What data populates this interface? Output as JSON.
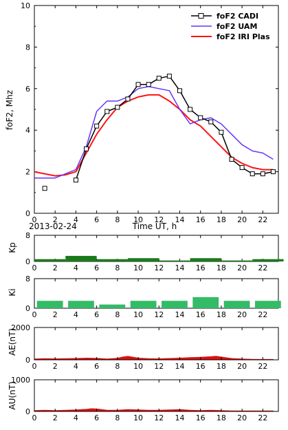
{
  "date_label": "2013-02-24",
  "chart_data": [
    {
      "id": "fof2",
      "type": "line",
      "title": "",
      "xlabel": "Time UT, h",
      "ylabel": "foF2, Mhz",
      "xlim": [
        0,
        23.5
      ],
      "ylim": [
        0,
        10
      ],
      "xticks": [
        0,
        2,
        4,
        6,
        8,
        10,
        12,
        14,
        16,
        18,
        20,
        22
      ],
      "yticks": [
        0,
        2,
        4,
        6,
        8,
        10
      ],
      "legend_position": "top-right",
      "series": [
        {
          "name": "foF2 CADI",
          "color": "#000000",
          "marker": "square",
          "x": [
            1,
            4,
            5,
            6,
            7,
            8,
            9,
            10,
            11,
            12,
            13,
            14,
            15,
            16,
            17,
            18,
            19,
            20,
            21,
            22,
            23
          ],
          "y": [
            1.2,
            1.6,
            3.1,
            4.2,
            4.9,
            5.1,
            5.5,
            6.2,
            6.2,
            6.5,
            6.6,
            5.9,
            5.0,
            4.6,
            4.4,
            3.9,
            2.6,
            2.2,
            1.9,
            1.9,
            2.0
          ],
          "gap_after_index": 0
        },
        {
          "name": "foF2 UAM",
          "color": "#6633ff",
          "x": [
            0,
            1,
            2,
            3,
            4,
            5,
            6,
            7,
            8,
            9,
            10,
            11,
            12,
            13,
            14,
            15,
            16,
            17,
            18,
            19,
            20,
            21,
            22,
            23
          ],
          "y": [
            1.7,
            1.7,
            1.7,
            1.9,
            2.1,
            3.2,
            4.9,
            5.4,
            5.4,
            5.6,
            6.0,
            6.1,
            6.0,
            5.9,
            5.0,
            4.3,
            4.5,
            4.6,
            4.3,
            3.8,
            3.3,
            3.0,
            2.9,
            2.6
          ]
        },
        {
          "name": "foF2 IRI Plas",
          "color": "#ff1111",
          "x": [
            0,
            1,
            2,
            3,
            4,
            5,
            6,
            7,
            8,
            9,
            10,
            11,
            12,
            13,
            14,
            15,
            16,
            17,
            18,
            19,
            20,
            21,
            22,
            23
          ],
          "y": [
            2.0,
            1.9,
            1.8,
            1.85,
            2.0,
            2.9,
            3.8,
            4.5,
            5.1,
            5.4,
            5.6,
            5.7,
            5.7,
            5.4,
            5.0,
            4.5,
            4.2,
            3.7,
            3.2,
            2.7,
            2.4,
            2.2,
            2.1,
            2.1
          ]
        }
      ]
    },
    {
      "id": "kp",
      "type": "bar",
      "ylabel": "Kp",
      "xlim": [
        0,
        23.5
      ],
      "ylim": [
        0,
        8
      ],
      "yticks": [
        0,
        8
      ],
      "xticks": [
        0,
        2,
        4,
        6,
        8,
        10,
        12,
        14,
        16,
        18,
        20,
        22
      ],
      "bar_width_hours": 3,
      "bar_color": "#1a7a1a",
      "x_start": [
        0,
        3,
        6,
        9,
        12,
        15,
        18,
        21
      ],
      "values": [
        0.7,
        1.7,
        0.7,
        1.0,
        0.3,
        1.0,
        0.3,
        0.7
      ]
    },
    {
      "id": "ki",
      "type": "bar",
      "ylabel": "Ki",
      "xlim": [
        0,
        23.5
      ],
      "ylim": [
        0,
        8
      ],
      "yticks": [
        0,
        8
      ],
      "xticks": [
        0,
        2,
        4,
        6,
        8,
        10,
        12,
        14,
        16,
        18,
        20,
        22
      ],
      "bar_width_hours": 3,
      "bar_gap_hours": 0.5,
      "bar_color": "#33bb66",
      "x_start": [
        0,
        3,
        6,
        9,
        12,
        15,
        18,
        21
      ],
      "values": [
        2.0,
        2.0,
        1.0,
        2.0,
        2.0,
        3.0,
        2.0,
        2.0
      ]
    },
    {
      "id": "ae",
      "type": "area",
      "ylabel": "AE(nT)",
      "xlim": [
        0,
        23.5
      ],
      "ylim": [
        0,
        2000
      ],
      "yticks": [
        0,
        2000
      ],
      "xticks": [
        0,
        2,
        4,
        6,
        8,
        10,
        12,
        14,
        16,
        18,
        20,
        22
      ],
      "fill_color": "#dd1111",
      "x": [
        0,
        1,
        2,
        3,
        4,
        5,
        6,
        7,
        8,
        8.5,
        9,
        9.5,
        10,
        11,
        12,
        13,
        14,
        15,
        16,
        17,
        17.5,
        18,
        19,
        20,
        21,
        22,
        23
      ],
      "values": [
        60,
        80,
        70,
        80,
        90,
        110,
        100,
        60,
        100,
        180,
        220,
        170,
        110,
        80,
        70,
        90,
        110,
        140,
        160,
        200,
        230,
        180,
        90,
        60,
        40,
        30,
        30
      ]
    },
    {
      "id": "au",
      "type": "area",
      "ylabel": "AU(nT)",
      "xlim": [
        0,
        23.5
      ],
      "ylim": [
        0,
        1000
      ],
      "yticks": [
        0,
        1000
      ],
      "xticks": [
        0,
        2,
        4,
        6,
        8,
        10,
        12,
        14,
        16,
        18,
        20,
        22
      ],
      "fill_color": "#dd1111",
      "x": [
        0,
        1,
        2,
        3,
        4,
        5,
        5.5,
        6,
        6.5,
        7,
        8,
        9,
        10,
        11,
        12,
        13,
        14,
        15,
        16,
        17,
        18,
        19,
        20,
        21,
        22,
        23
      ],
      "values": [
        30,
        40,
        30,
        40,
        50,
        70,
        90,
        80,
        60,
        40,
        40,
        60,
        50,
        40,
        40,
        50,
        60,
        40,
        30,
        40,
        30,
        20,
        20,
        20,
        20,
        20
      ]
    }
  ]
}
